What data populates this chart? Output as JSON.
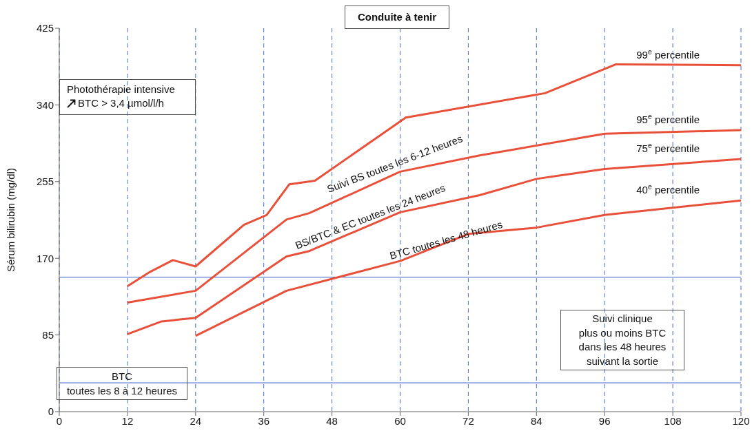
{
  "chart_data": {
    "type": "line",
    "title": "Conduite à tenir",
    "ylabel": "Sérum bilirubin (mg/dl)",
    "xlim": [
      0,
      120
    ],
    "xticks": [
      0,
      12,
      24,
      36,
      48,
      60,
      72,
      84,
      96,
      108,
      120
    ],
    "ylim": [
      0,
      425
    ],
    "yticks": [
      0,
      85,
      170,
      255,
      340,
      425
    ],
    "grid": "x",
    "marker": "none",
    "line_style": "solid",
    "series": [
      {
        "name": "99$^{e}$ percentile",
        "color": "#e8503a",
        "x": [
          12,
          16,
          20,
          24,
          32.5,
          36.5,
          40.5,
          45,
          61,
          85.5,
          98,
          120
        ],
        "values": [
          139,
          155,
          168,
          161,
          207,
          218,
          252,
          256,
          326,
          353,
          385,
          384
        ]
      },
      {
        "name": "95$^{e}$ percentile",
        "color": "#e8503a",
        "x": [
          12,
          24,
          40,
          44,
          60,
          74,
          96,
          120
        ],
        "values": [
          121,
          134,
          213,
          220,
          266,
          284,
          308,
          312
        ]
      },
      {
        "name": "75$^{e}$ percentile",
        "color": "#e8503a",
        "x": [
          12,
          18,
          24,
          40,
          44,
          60,
          74,
          84,
          96,
          120
        ],
        "values": [
          86,
          100,
          104,
          172,
          178,
          221,
          240,
          258,
          269,
          280
        ]
      },
      {
        "name": "40$^{e}$ percentile",
        "color": "#e8503a",
        "x": [
          24,
          40,
          60,
          72,
          84,
          96,
          120
        ],
        "values": [
          84,
          134,
          167,
          197,
          204,
          218,
          234
        ]
      }
    ],
    "ref_lines": [
      {
        "axis": "y",
        "value": 149,
        "color": "#5b7bd5"
      },
      {
        "axis": "y",
        "value": 32,
        "color": "#5b7bd5"
      }
    ],
    "annotations": [
      "Photothérapie intensive",
      "BTC > 3,4 µmol/l/h",
      "Suivi BS toutes les 6-12 heures",
      "BS/BTC & EC toutes les 24 heures",
      "BTC  toutes les 48 heures",
      "Suivi clinique\nplus ou moins BTC\ndans les 48 heures\nsuivant la sortie",
      "BTC\ntoutes les 8 à 12 heures"
    ]
  }
}
